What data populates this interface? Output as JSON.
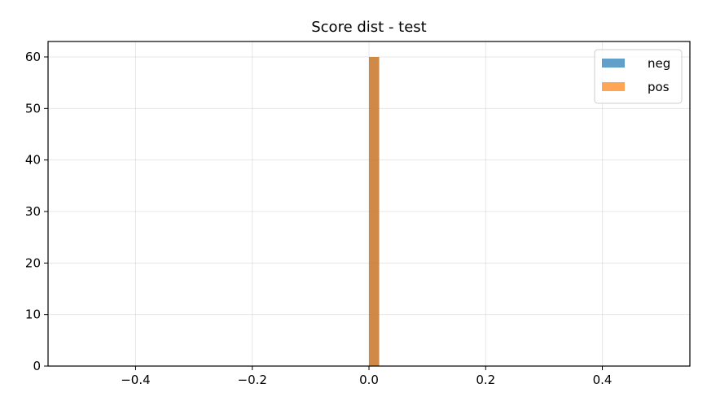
{
  "chart_data": {
    "type": "bar",
    "title": "Score dist - test",
    "xlabel": "",
    "ylabel": "",
    "xlim": [
      -0.55,
      0.55
    ],
    "ylim": [
      0,
      63
    ],
    "x_ticks": [
      -0.4,
      -0.2,
      0.0,
      0.2,
      0.4
    ],
    "x_tick_labels": [
      "−0.4",
      "−0.2",
      "0.0",
      "0.2",
      "0.4"
    ],
    "y_ticks": [
      0,
      10,
      20,
      30,
      40,
      50,
      60
    ],
    "y_tick_labels": [
      "0",
      "10",
      "20",
      "30",
      "40",
      "50",
      "60"
    ],
    "grid": true,
    "legend_position": "top-right",
    "series": [
      {
        "name": "neg",
        "color": "#1f77b4",
        "opacity": 0.7,
        "bins": [
          {
            "x0": 0.0,
            "x1": 0.0175,
            "count": 60
          }
        ]
      },
      {
        "name": "pos",
        "color": "#ff7f0e",
        "opacity": 0.7,
        "bins": [
          {
            "x0": 0.0,
            "x1": 0.0175,
            "count": 60
          }
        ]
      }
    ]
  }
}
